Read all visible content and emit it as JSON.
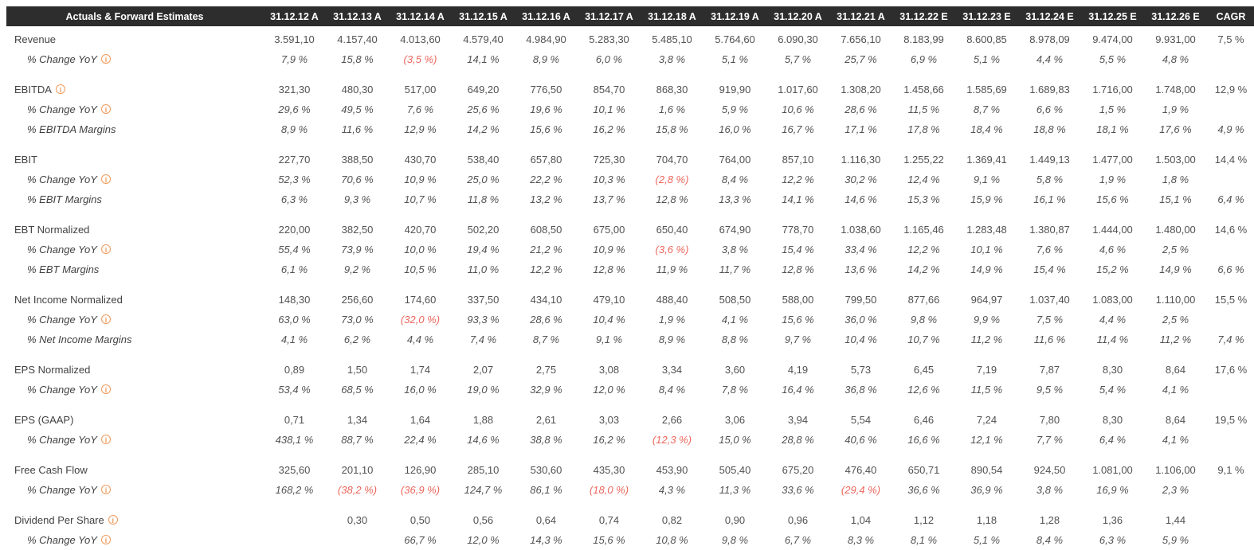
{
  "colors": {
    "header_bg": "#2d2d2d",
    "header_text": "#ffffff",
    "label_text": "#414141",
    "value_text": "#525252",
    "negative": "#ec665c",
    "info_icon": "#f0995a"
  },
  "icons": {
    "info_glyph": "i"
  },
  "table": {
    "corner_label": "Actuals & Forward Estimates",
    "columns": [
      "31.12.12 A",
      "31.12.13 A",
      "31.12.14 A",
      "31.12.15 A",
      "31.12.16 A",
      "31.12.17 A",
      "31.12.18 A",
      "31.12.19 A",
      "31.12.20 A",
      "31.12.21 A",
      "31.12.22 E",
      "31.12.23 E",
      "31.12.24 E",
      "31.12.25 E",
      "31.12.26 E",
      "CAGR"
    ],
    "rows": [
      {
        "label": "Revenue",
        "style": "main",
        "info": false,
        "gap": false,
        "values": [
          "3.591,10",
          "4.157,40",
          "4.013,60",
          "4.579,40",
          "4.984,90",
          "5.283,30",
          "5.485,10",
          "5.764,60",
          "6.090,30",
          "7.656,10",
          "8.183,99",
          "8.600,85",
          "8.978,09",
          "9.474,00",
          "9.931,00"
        ],
        "cagr": "7,5 %"
      },
      {
        "label": "% Change YoY",
        "style": "sub",
        "info": true,
        "gap": false,
        "values": [
          "7,9 %",
          "15,8 %",
          "(3,5 %)",
          "14,1 %",
          "8,9 %",
          "6,0 %",
          "3,8 %",
          "5,1 %",
          "5,7 %",
          "25,7 %",
          "6,9 %",
          "5,1 %",
          "4,4 %",
          "5,5 %",
          "4,8 %"
        ],
        "cagr": ""
      },
      {
        "label": "EBITDA",
        "style": "main",
        "info": true,
        "gap": true,
        "values": [
          "321,30",
          "480,30",
          "517,00",
          "649,20",
          "776,50",
          "854,70",
          "868,30",
          "919,90",
          "1.017,60",
          "1.308,20",
          "1.458,66",
          "1.585,69",
          "1.689,83",
          "1.716,00",
          "1.748,00"
        ],
        "cagr": "12,9 %"
      },
      {
        "label": "% Change YoY",
        "style": "sub",
        "info": true,
        "gap": false,
        "values": [
          "29,6 %",
          "49,5 %",
          "7,6 %",
          "25,6 %",
          "19,6 %",
          "10,1 %",
          "1,6 %",
          "5,9 %",
          "10,6 %",
          "28,6 %",
          "11,5 %",
          "8,7 %",
          "6,6 %",
          "1,5 %",
          "1,9 %"
        ],
        "cagr": ""
      },
      {
        "label": "% EBITDA Margins",
        "style": "sub",
        "info": false,
        "gap": false,
        "values": [
          "8,9 %",
          "11,6 %",
          "12,9 %",
          "14,2 %",
          "15,6 %",
          "16,2 %",
          "15,8 %",
          "16,0 %",
          "16,7 %",
          "17,1 %",
          "17,8 %",
          "18,4 %",
          "18,8 %",
          "18,1 %",
          "17,6 %"
        ],
        "cagr": "4,9 %"
      },
      {
        "label": "EBIT",
        "style": "main",
        "info": false,
        "gap": true,
        "values": [
          "227,70",
          "388,50",
          "430,70",
          "538,40",
          "657,80",
          "725,30",
          "704,70",
          "764,00",
          "857,10",
          "1.116,30",
          "1.255,22",
          "1.369,41",
          "1.449,13",
          "1.477,00",
          "1.503,00"
        ],
        "cagr": "14,4 %"
      },
      {
        "label": "% Change YoY",
        "style": "sub",
        "info": true,
        "gap": false,
        "values": [
          "52,3 %",
          "70,6 %",
          "10,9 %",
          "25,0 %",
          "22,2 %",
          "10,3 %",
          "(2,8 %)",
          "8,4 %",
          "12,2 %",
          "30,2 %",
          "12,4 %",
          "9,1 %",
          "5,8 %",
          "1,9 %",
          "1,8 %"
        ],
        "cagr": ""
      },
      {
        "label": "% EBIT Margins",
        "style": "sub",
        "info": false,
        "gap": false,
        "values": [
          "6,3 %",
          "9,3 %",
          "10,7 %",
          "11,8 %",
          "13,2 %",
          "13,7 %",
          "12,8 %",
          "13,3 %",
          "14,1 %",
          "14,6 %",
          "15,3 %",
          "15,9 %",
          "16,1 %",
          "15,6 %",
          "15,1 %"
        ],
        "cagr": "6,4 %"
      },
      {
        "label": "EBT Normalized",
        "style": "main",
        "info": false,
        "gap": true,
        "values": [
          "220,00",
          "382,50",
          "420,70",
          "502,20",
          "608,50",
          "675,00",
          "650,40",
          "674,90",
          "778,70",
          "1.038,60",
          "1.165,46",
          "1.283,48",
          "1.380,87",
          "1.444,00",
          "1.480,00"
        ],
        "cagr": "14,6 %"
      },
      {
        "label": "% Change YoY",
        "style": "sub",
        "info": true,
        "gap": false,
        "values": [
          "55,4 %",
          "73,9 %",
          "10,0 %",
          "19,4 %",
          "21,2 %",
          "10,9 %",
          "(3,6 %)",
          "3,8 %",
          "15,4 %",
          "33,4 %",
          "12,2 %",
          "10,1 %",
          "7,6 %",
          "4,6 %",
          "2,5 %"
        ],
        "cagr": ""
      },
      {
        "label": "% EBT Margins",
        "style": "sub",
        "info": false,
        "gap": false,
        "values": [
          "6,1 %",
          "9,2 %",
          "10,5 %",
          "11,0 %",
          "12,2 %",
          "12,8 %",
          "11,9 %",
          "11,7 %",
          "12,8 %",
          "13,6 %",
          "14,2 %",
          "14,9 %",
          "15,4 %",
          "15,2 %",
          "14,9 %"
        ],
        "cagr": "6,6 %"
      },
      {
        "label": "Net Income Normalized",
        "style": "main",
        "info": false,
        "gap": true,
        "values": [
          "148,30",
          "256,60",
          "174,60",
          "337,50",
          "434,10",
          "479,10",
          "488,40",
          "508,50",
          "588,00",
          "799,50",
          "877,66",
          "964,97",
          "1.037,40",
          "1.083,00",
          "1.110,00"
        ],
        "cagr": "15,5 %"
      },
      {
        "label": "% Change YoY",
        "style": "sub",
        "info": true,
        "gap": false,
        "values": [
          "63,0 %",
          "73,0 %",
          "(32,0 %)",
          "93,3 %",
          "28,6 %",
          "10,4 %",
          "1,9 %",
          "4,1 %",
          "15,6 %",
          "36,0 %",
          "9,8 %",
          "9,9 %",
          "7,5 %",
          "4,4 %",
          "2,5 %"
        ],
        "cagr": ""
      },
      {
        "label": "% Net Income Margins",
        "style": "sub",
        "info": false,
        "gap": false,
        "values": [
          "4,1 %",
          "6,2 %",
          "4,4 %",
          "7,4 %",
          "8,7 %",
          "9,1 %",
          "8,9 %",
          "8,8 %",
          "9,7 %",
          "10,4 %",
          "10,7 %",
          "11,2 %",
          "11,6 %",
          "11,4 %",
          "11,2 %"
        ],
        "cagr": "7,4 %"
      },
      {
        "label": "EPS Normalized",
        "style": "main",
        "info": false,
        "gap": true,
        "values": [
          "0,89",
          "1,50",
          "1,74",
          "2,07",
          "2,75",
          "3,08",
          "3,34",
          "3,60",
          "4,19",
          "5,73",
          "6,45",
          "7,19",
          "7,87",
          "8,30",
          "8,64"
        ],
        "cagr": "17,6 %"
      },
      {
        "label": "% Change YoY",
        "style": "sub",
        "info": true,
        "gap": false,
        "values": [
          "53,4 %",
          "68,5 %",
          "16,0 %",
          "19,0 %",
          "32,9 %",
          "12,0 %",
          "8,4 %",
          "7,8 %",
          "16,4 %",
          "36,8 %",
          "12,6 %",
          "11,5 %",
          "9,5 %",
          "5,4 %",
          "4,1 %"
        ],
        "cagr": ""
      },
      {
        "label": "EPS (GAAP)",
        "style": "main",
        "info": false,
        "gap": true,
        "values": [
          "0,71",
          "1,34",
          "1,64",
          "1,88",
          "2,61",
          "3,03",
          "2,66",
          "3,06",
          "3,94",
          "5,54",
          "6,46",
          "7,24",
          "7,80",
          "8,30",
          "8,64"
        ],
        "cagr": "19,5 %"
      },
      {
        "label": "% Change YoY",
        "style": "sub",
        "info": true,
        "gap": false,
        "values": [
          "438,1 %",
          "88,7 %",
          "22,4 %",
          "14,6 %",
          "38,8 %",
          "16,2 %",
          "(12,3 %)",
          "15,0 %",
          "28,8 %",
          "40,6 %",
          "16,6 %",
          "12,1 %",
          "7,7 %",
          "6,4 %",
          "4,1 %"
        ],
        "cagr": ""
      },
      {
        "label": "Free Cash Flow",
        "style": "main",
        "info": false,
        "gap": true,
        "values": [
          "325,60",
          "201,10",
          "126,90",
          "285,10",
          "530,60",
          "435,30",
          "453,90",
          "505,40",
          "675,20",
          "476,40",
          "650,71",
          "890,54",
          "924,50",
          "1.081,00",
          "1.106,00"
        ],
        "cagr": "9,1 %"
      },
      {
        "label": "% Change YoY",
        "style": "sub",
        "info": true,
        "gap": false,
        "values": [
          "168,2 %",
          "(38,2 %)",
          "(36,9 %)",
          "124,7 %",
          "86,1 %",
          "(18,0 %)",
          "4,3 %",
          "11,3 %",
          "33,6 %",
          "(29,4 %)",
          "36,6 %",
          "36,9 %",
          "3,8 %",
          "16,9 %",
          "2,3 %"
        ],
        "cagr": ""
      },
      {
        "label": "Dividend Per Share",
        "style": "main",
        "info": true,
        "gap": true,
        "values": [
          "",
          "0,30",
          "0,50",
          "0,56",
          "0,64",
          "0,74",
          "0,82",
          "0,90",
          "0,96",
          "1,04",
          "1,12",
          "1,18",
          "1,28",
          "1,36",
          "1,44"
        ],
        "cagr": ""
      },
      {
        "label": "% Change YoY",
        "style": "sub",
        "info": true,
        "gap": false,
        "values": [
          "",
          "",
          "66,7 %",
          "12,0 %",
          "14,3 %",
          "15,6 %",
          "10,8 %",
          "9,8 %",
          "6,7 %",
          "8,3 %",
          "8,1 %",
          "5,1 %",
          "8,4 %",
          "6,3 %",
          "5,9 %"
        ],
        "cagr": ""
      }
    ]
  }
}
